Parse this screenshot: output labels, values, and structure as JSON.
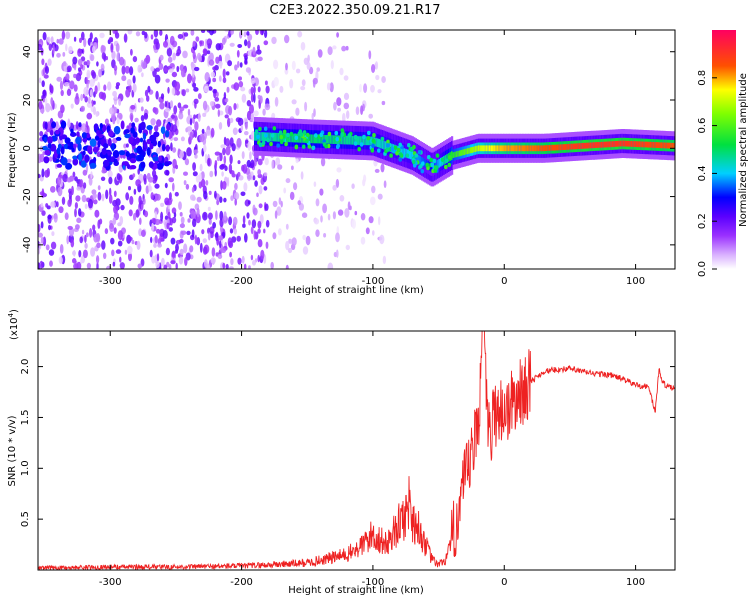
{
  "figure": {
    "title": "C2E3.2022.350.09.21.R17"
  },
  "chart_data": [
    {
      "type": "heatmap",
      "title": "C2E3.2022.350.09.21.R17",
      "xlabel": "Height of straight line (km)",
      "ylabel": "Frequency (Hz)",
      "xlim": [
        -355,
        130
      ],
      "ylim": [
        -50,
        49
      ],
      "xticks": [
        -300,
        -200,
        -100,
        0,
        100
      ],
      "yticks": [
        -40,
        -20,
        0,
        20,
        40
      ],
      "grid": false,
      "colorbar": {
        "label": "Normalized spectral amplitude",
        "range": [
          0.0,
          1.0
        ],
        "ticks": [
          0.0,
          0.2,
          0.4,
          0.6,
          0.8
        ],
        "colors": [
          "#ffffff",
          "#c080ff",
          "#7a00ff",
          "#0000ff",
          "#00c8ff",
          "#00e000",
          "#ffff00",
          "#ff4000",
          "#ff0060"
        ]
      },
      "ridge": {
        "x": [
          -190,
          -150,
          -100,
          -70,
          -55,
          -40,
          -20,
          0,
          30,
          60,
          90,
          130
        ],
        "y": [
          5,
          4,
          3,
          -3,
          -8,
          -3,
          0,
          0,
          0,
          1,
          2,
          1
        ],
        "peak_amplitude": [
          0.45,
          0.5,
          0.45,
          0.4,
          0.3,
          0.55,
          0.7,
          0.8,
          0.85,
          0.9,
          0.9,
          0.85
        ]
      }
    },
    {
      "type": "line",
      "xlabel": "Height of straight line (km)",
      "ylabel": "SNR (10 * v/v)",
      "ylabel_exponent": "(x10",
      "exponent_power": "4",
      "exponent_close": ")",
      "xlim": [
        -355,
        130
      ],
      "ylim": [
        0,
        2.35
      ],
      "xticks": [
        -300,
        -200,
        -100,
        0,
        100
      ],
      "yticks": [
        0.5,
        1.0,
        1.5,
        2.0
      ],
      "ytick_labels": [
        "0.5",
        "1.0",
        "1.5",
        "2.0"
      ],
      "grid": false,
      "line_color": "#ee2222",
      "series": [
        {
          "x": [
            -355,
            -300,
            -250,
            -200,
            -180,
            -150,
            -120,
            -110,
            -100,
            -90,
            -80,
            -75,
            -72,
            -70,
            -65,
            -60,
            -55,
            -50,
            -45,
            -40,
            -35,
            -30,
            -25,
            -20,
            -16,
            -12,
            -8,
            -5,
            0,
            10,
            20,
            30,
            40,
            50,
            60,
            70,
            80,
            90,
            100,
            110,
            115,
            118,
            120,
            125,
            130
          ],
          "y": [
            0.02,
            0.03,
            0.03,
            0.04,
            0.05,
            0.07,
            0.15,
            0.22,
            0.35,
            0.25,
            0.45,
            0.55,
            0.7,
            0.5,
            0.4,
            0.25,
            0.1,
            0.05,
            0.1,
            0.25,
            0.6,
            0.85,
            1.1,
            1.4,
            2.35,
            1.3,
            1.5,
            1.6,
            1.55,
            1.7,
            1.85,
            1.95,
            1.97,
            1.98,
            1.95,
            1.93,
            1.92,
            1.88,
            1.82,
            1.8,
            1.55,
            2.0,
            1.85,
            1.8,
            1.78
          ]
        }
      ]
    }
  ]
}
